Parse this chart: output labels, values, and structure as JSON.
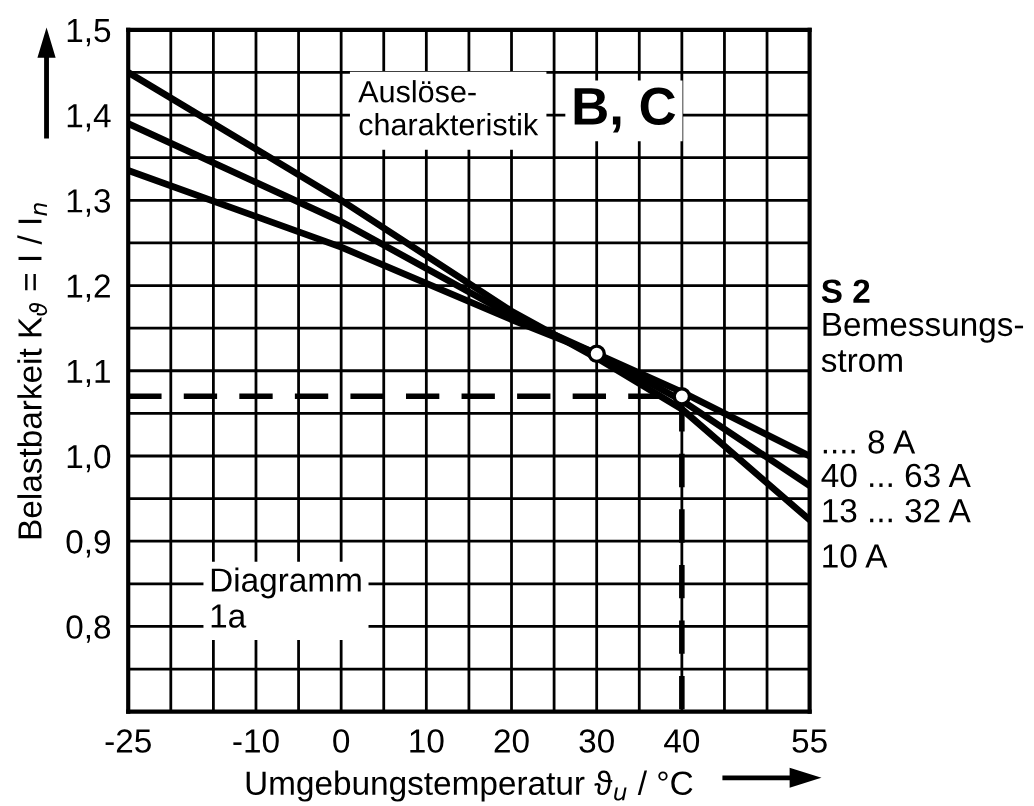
{
  "chart_data": {
    "type": "line",
    "xlabel": "Umgebungstemperatur ϑ$_{u}$ / °C",
    "ylabel": "Belastbarkeit K$_{ϑ}$ = I / I$_{n}$",
    "legend_title": "S 2",
    "annotations": [
      "Auslöse-\ncharakteristik",
      "B, C",
      "Bemessungs-\nstrom",
      "Diagramm\n1a"
    ],
    "xlim": [
      -25,
      55
    ],
    "ylim": [
      0.7,
      1.5
    ],
    "xticks": [
      -25,
      {
        "value": -20,
        "label": null
      },
      {
        "value": -15,
        "label": null
      },
      -10,
      {
        "value": -5,
        "label": null
      },
      0,
      {
        "value": 5,
        "label": null
      },
      10,
      {
        "value": 15,
        "label": null
      },
      20,
      {
        "value": 25,
        "label": null
      },
      30,
      {
        "value": 35,
        "label": null
      },
      40,
      {
        "value": 45,
        "label": null
      },
      {
        "value": 50,
        "label": null
      },
      55
    ],
    "yticks": [
      {
        "value": 0.75,
        "label": null
      },
      {
        "value": 0.8,
        "label": "0,8"
      },
      {
        "value": 0.85,
        "label": null
      },
      {
        "value": 0.9,
        "label": "0,9"
      },
      {
        "value": 0.95,
        "label": null
      },
      {
        "value": 1.0,
        "label": "1,0"
      },
      {
        "value": 1.05,
        "label": null
      },
      {
        "value": 1.1,
        "label": "1,1"
      },
      {
        "value": 1.15,
        "label": null
      },
      {
        "value": 1.2,
        "label": "1,2"
      },
      {
        "value": 1.25,
        "label": null
      },
      {
        "value": 1.3,
        "label": "1,3"
      },
      {
        "value": 1.35,
        "label": null
      },
      {
        "value": 1.4,
        "label": "1,4"
      },
      {
        "value": 1.45,
        "label": null
      },
      {
        "value": 1.5,
        "label": "1,5"
      }
    ],
    "grid": true,
    "series": [
      {
        "name": "10 A",
        "color": "#000000",
        "x": [
          -25,
          0,
          20,
          30,
          40,
          55
        ],
        "values": [
          1.45,
          1.3,
          1.17,
          1.115,
          1.055,
          0.925
        ]
      },
      {
        "name": "13 ... 32 A",
        "color": "#000000",
        "x": [
          -25,
          0,
          20,
          30,
          40,
          55
        ],
        "values": [
          1.39,
          1.275,
          1.165,
          1.12,
          1.065,
          0.965
        ]
      },
      {
        "name": ".... 8 A\n40 ... 63 A",
        "color": "#000000",
        "x": [
          -25,
          0,
          20,
          30,
          40,
          55
        ],
        "values": [
          1.335,
          1.245,
          1.16,
          1.12,
          1.075,
          1.0
        ]
      },
      {
        "color": "#000000",
        "x": [
          -25,
          40,
          40
        ],
        "values": [
          1.07,
          1.07,
          0.7
        ],
        "line_style": "dashed"
      },
      {
        "type": "scatter",
        "color": "#000000",
        "x": [
          30,
          40
        ],
        "values": [
          1.12,
          1.07
        ],
        "marker": "circle"
      }
    ]
  }
}
